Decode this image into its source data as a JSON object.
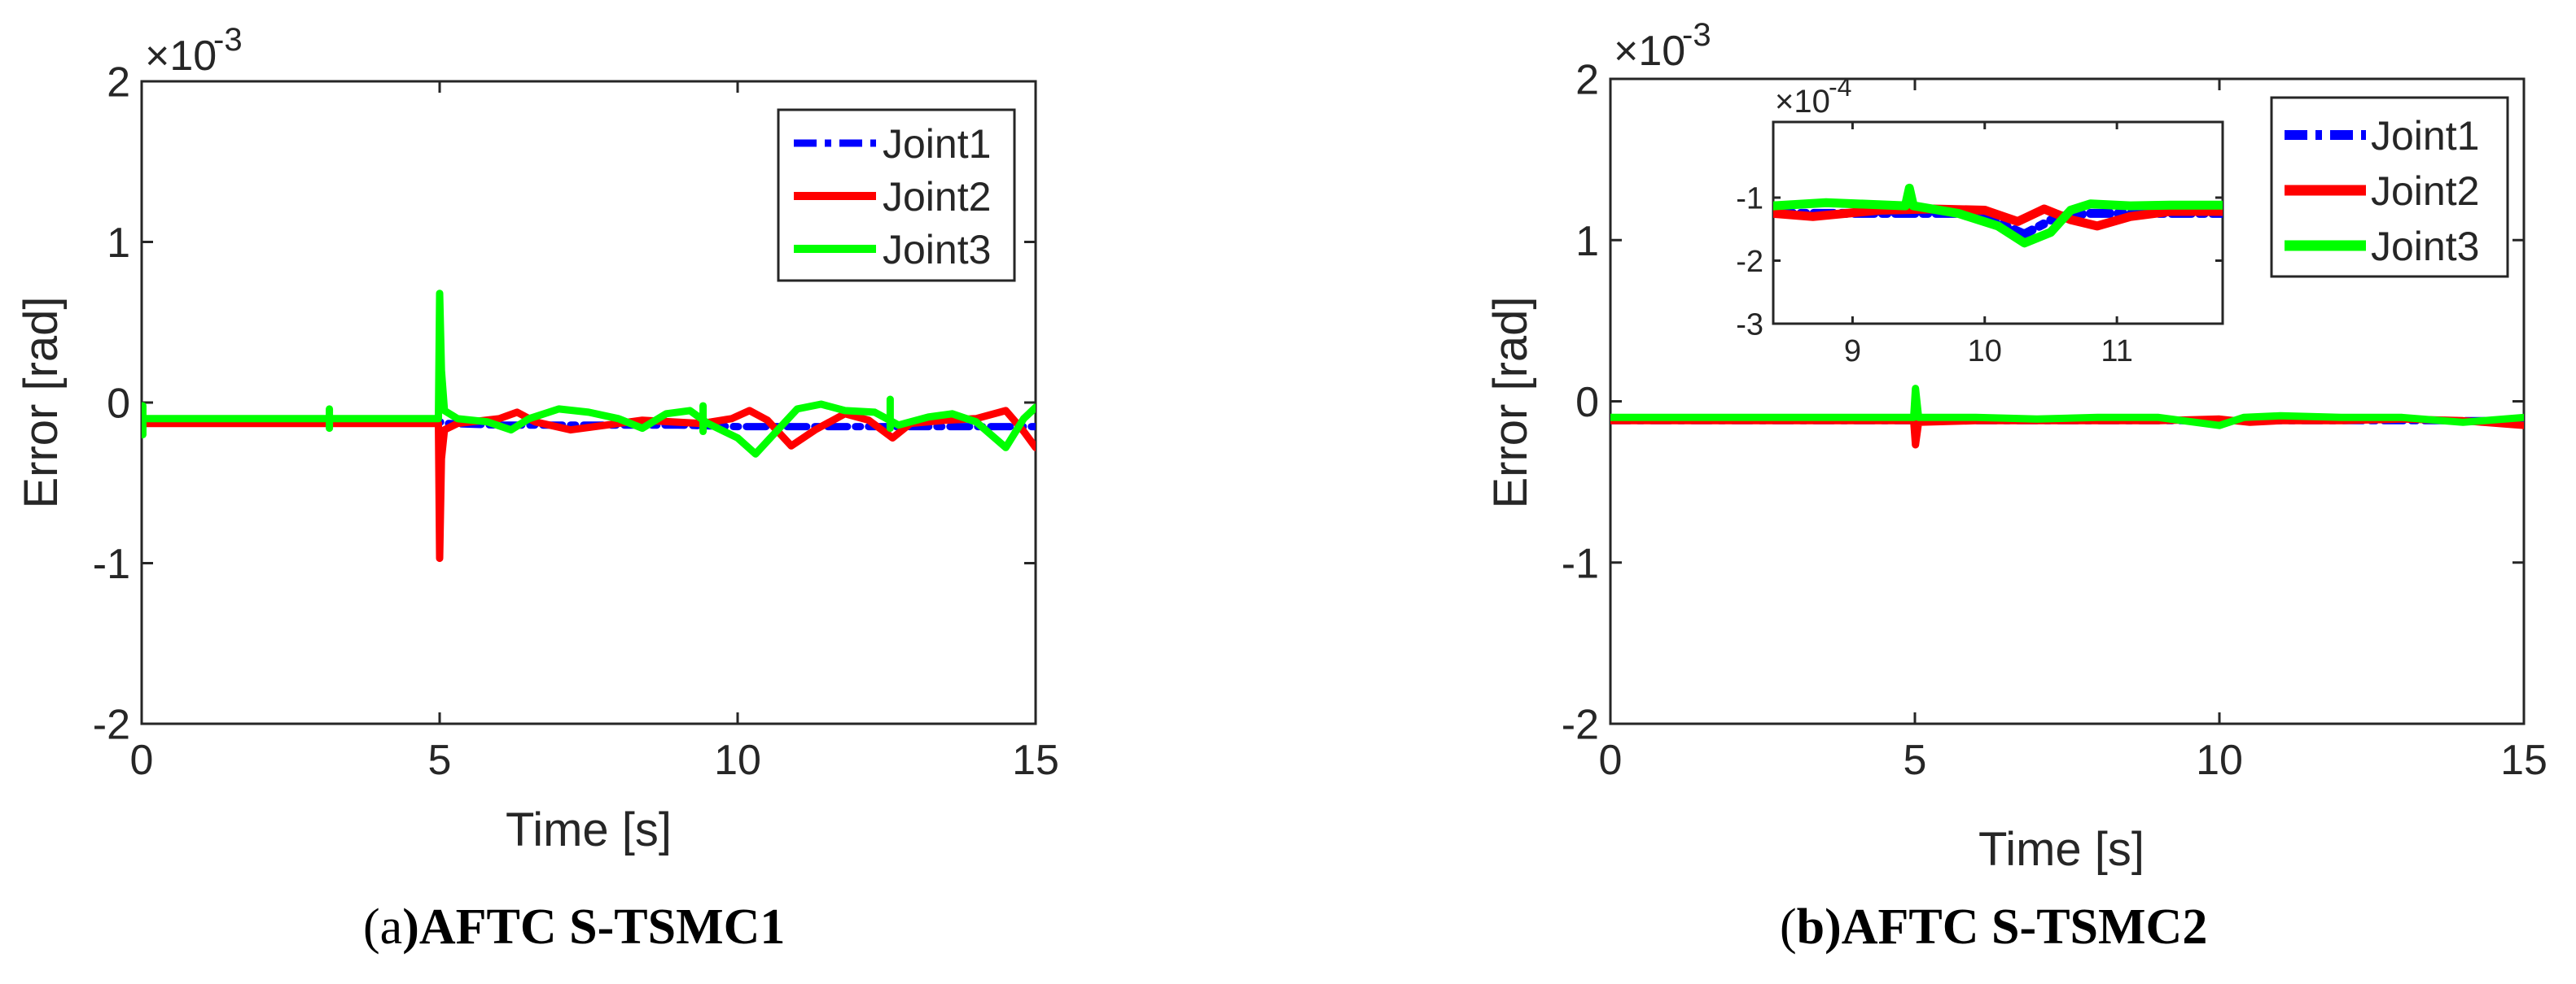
{
  "colors": {
    "joint1": "#0000ff",
    "joint2": "#ff0000",
    "joint3": "#00ff00",
    "axis": "#262626"
  },
  "chart_data": [
    {
      "type": "line",
      "caption_prefix": "(",
      "caption_letter": "a",
      "caption_rest": ")AFTC S-TSMC1",
      "xlabel": "Time [s]",
      "ylabel": "Error [rad]",
      "y_exponent_label": "×10",
      "y_exponent": "-3",
      "xlim": [
        0,
        15
      ],
      "ylim": [
        -2,
        2
      ],
      "xticks": [
        "0",
        "5",
        "10",
        "15"
      ],
      "yticks": [
        "-2",
        "-1",
        "0",
        "1",
        "2"
      ],
      "legend": [
        "Joint1",
        "Joint2",
        "Joint3"
      ],
      "legend_position": "top-right",
      "series": [
        {
          "name": "Joint1",
          "style": "dash-dot",
          "points": [
            [
              0,
              -0.17
            ],
            [
              0.05,
              -0.12
            ],
            [
              3,
              -0.12
            ],
            [
              5,
              -0.12
            ],
            [
              5.1,
              -0.13
            ],
            [
              6,
              -0.14
            ],
            [
              7,
              -0.14
            ],
            [
              8,
              -0.14
            ],
            [
              9,
              -0.14
            ],
            [
              10,
              -0.15
            ],
            [
              11,
              -0.15
            ],
            [
              12,
              -0.15
            ],
            [
              13,
              -0.15
            ],
            [
              14,
              -0.15
            ],
            [
              15,
              -0.15
            ]
          ]
        },
        {
          "name": "Joint2",
          "style": "solid",
          "points": [
            [
              0,
              -0.13
            ],
            [
              4.98,
              -0.13
            ],
            [
              5.0,
              -0.97
            ],
            [
              5.03,
              -0.35
            ],
            [
              5.08,
              -0.17
            ],
            [
              5.3,
              -0.13
            ],
            [
              6,
              -0.1
            ],
            [
              6.3,
              -0.06
            ],
            [
              6.6,
              -0.12
            ],
            [
              7.2,
              -0.17
            ],
            [
              7.8,
              -0.14
            ],
            [
              8.4,
              -0.11
            ],
            [
              8.9,
              -0.12
            ],
            [
              9.4,
              -0.13
            ],
            [
              9.9,
              -0.1
            ],
            [
              10.2,
              -0.05
            ],
            [
              10.5,
              -0.11
            ],
            [
              10.9,
              -0.27
            ],
            [
              11.3,
              -0.17
            ],
            [
              11.8,
              -0.07
            ],
            [
              12.2,
              -0.11
            ],
            [
              12.6,
              -0.22
            ],
            [
              12.9,
              -0.13
            ],
            [
              13.5,
              -0.11
            ],
            [
              14,
              -0.1
            ],
            [
              14.5,
              -0.05
            ],
            [
              14.8,
              -0.18
            ],
            [
              15,
              -0.28
            ]
          ]
        },
        {
          "name": "Joint3",
          "style": "solid",
          "points": [
            [
              0,
              -0.1
            ],
            [
              4.98,
              -0.1
            ],
            [
              5.0,
              0.68
            ],
            [
              5.03,
              0.2
            ],
            [
              5.08,
              -0.05
            ],
            [
              5.3,
              -0.1
            ],
            [
              5.8,
              -0.12
            ],
            [
              6.2,
              -0.17
            ],
            [
              6.5,
              -0.1
            ],
            [
              7,
              -0.04
            ],
            [
              7.5,
              -0.06
            ],
            [
              8,
              -0.1
            ],
            [
              8.4,
              -0.16
            ],
            [
              8.8,
              -0.07
            ],
            [
              9.2,
              -0.05
            ],
            [
              9.5,
              -0.13
            ],
            [
              10,
              -0.22
            ],
            [
              10.3,
              -0.32
            ],
            [
              10.6,
              -0.2
            ],
            [
              11,
              -0.04
            ],
            [
              11.4,
              -0.01
            ],
            [
              11.8,
              -0.05
            ],
            [
              12.3,
              -0.06
            ],
            [
              12.7,
              -0.14
            ],
            [
              13.2,
              -0.09
            ],
            [
              13.6,
              -0.07
            ],
            [
              14,
              -0.12
            ],
            [
              14.5,
              -0.28
            ],
            [
              14.8,
              -0.1
            ],
            [
              15,
              -0.03
            ]
          ]
        }
      ],
      "spikes": [
        {
          "series": "Joint3",
          "x": 0.02,
          "y_low": -0.2,
          "y_high": -0.02
        },
        {
          "series": "Joint3",
          "x": 3.15,
          "y_low": -0.16,
          "y_high": -0.04
        },
        {
          "series": "Joint3",
          "x": 9.42,
          "y_low": -0.18,
          "y_high": -0.02
        },
        {
          "series": "Joint3",
          "x": 12.56,
          "y_low": -0.16,
          "y_high": 0.02
        }
      ]
    },
    {
      "type": "line",
      "caption_prefix": "(",
      "caption_letter": "b",
      "caption_rest": ")AFTC S-TSMC2",
      "xlabel": "Time [s]",
      "ylabel": "Error [rad]",
      "y_exponent_label": "×10",
      "y_exponent": "-3",
      "xlim": [
        0,
        15
      ],
      "ylim": [
        -2,
        2
      ],
      "xticks": [
        "0",
        "5",
        "10",
        "15"
      ],
      "yticks": [
        "-2",
        "-1",
        "0",
        "1",
        "2"
      ],
      "legend": [
        "Joint1",
        "Joint2",
        "Joint3"
      ],
      "legend_position": "top-right",
      "series": [
        {
          "name": "Joint1",
          "style": "dash-dot",
          "points": [
            [
              0,
              -0.12
            ],
            [
              15,
              -0.12
            ]
          ]
        },
        {
          "name": "Joint2",
          "style": "solid",
          "points": [
            [
              0,
              -0.12
            ],
            [
              4.98,
              -0.12
            ],
            [
              5.01,
              -0.27
            ],
            [
              5.06,
              -0.13
            ],
            [
              6,
              -0.12
            ],
            [
              7,
              -0.12
            ],
            [
              8,
              -0.12
            ],
            [
              9,
              -0.12
            ],
            [
              10,
              -0.11
            ],
            [
              10.5,
              -0.13
            ],
            [
              11,
              -0.12
            ],
            [
              12,
              -0.12
            ],
            [
              13,
              -0.11
            ],
            [
              14,
              -0.12
            ],
            [
              15,
              -0.15
            ]
          ]
        },
        {
          "name": "Joint3",
          "style": "solid",
          "points": [
            [
              0,
              -0.1
            ],
            [
              4.98,
              -0.1
            ],
            [
              5.01,
              0.08
            ],
            [
              5.06,
              -0.1
            ],
            [
              6,
              -0.1
            ],
            [
              7,
              -0.11
            ],
            [
              8,
              -0.1
            ],
            [
              9,
              -0.1
            ],
            [
              10,
              -0.15
            ],
            [
              10.4,
              -0.1
            ],
            [
              11,
              -0.09
            ],
            [
              12,
              -0.1
            ],
            [
              13,
              -0.1
            ],
            [
              14,
              -0.13
            ],
            [
              15,
              -0.1
            ]
          ]
        }
      ],
      "spikes": [],
      "inset": {
        "y_exponent_label": "×10",
        "y_exponent": "-4",
        "xlim": [
          8.4,
          11.8
        ],
        "ylim": [
          -3,
          0.2
        ],
        "xticks": [
          "9",
          "10",
          "11"
        ],
        "yticks": [
          "-3",
          "-2",
          "-1"
        ],
        "series": [
          {
            "name": "Joint1",
            "style": "dash-dot",
            "points": [
              [
                8.4,
                -1.25
              ],
              [
                9.8,
                -1.25
              ],
              [
                10.0,
                -1.3
              ],
              [
                10.3,
                -1.58
              ],
              [
                10.55,
                -1.3
              ],
              [
                10.8,
                -1.25
              ],
              [
                11.8,
                -1.25
              ]
            ]
          },
          {
            "name": "Joint2",
            "style": "solid",
            "points": [
              [
                8.4,
                -1.25
              ],
              [
                8.7,
                -1.3
              ],
              [
                9.2,
                -1.2
              ],
              [
                9.6,
                -1.18
              ],
              [
                10.0,
                -1.2
              ],
              [
                10.25,
                -1.38
              ],
              [
                10.45,
                -1.18
              ],
              [
                10.65,
                -1.35
              ],
              [
                10.85,
                -1.45
              ],
              [
                11.1,
                -1.3
              ],
              [
                11.4,
                -1.22
              ],
              [
                11.8,
                -1.22
              ]
            ]
          },
          {
            "name": "Joint3",
            "style": "solid",
            "points": [
              [
                8.4,
                -1.13
              ],
              [
                8.8,
                -1.08
              ],
              [
                9.4,
                -1.13
              ],
              [
                9.43,
                -0.85
              ],
              [
                9.46,
                -1.13
              ],
              [
                9.8,
                -1.25
              ],
              [
                10.1,
                -1.45
              ],
              [
                10.3,
                -1.72
              ],
              [
                10.5,
                -1.55
              ],
              [
                10.65,
                -1.2
              ],
              [
                10.8,
                -1.1
              ],
              [
                11.1,
                -1.13
              ],
              [
                11.4,
                -1.12
              ],
              [
                11.8,
                -1.12
              ]
            ]
          }
        ]
      }
    }
  ]
}
